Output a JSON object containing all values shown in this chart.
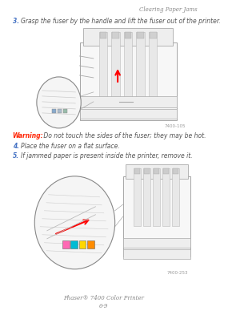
{
  "bg_color": "#ffffff",
  "header_text": "Clearing Paper Jams",
  "header_color": "#888888",
  "header_fontsize": 5.0,
  "header_style": "italic",
  "step3_num": "3.",
  "step3_num_color": "#4472c4",
  "step3_text": "Grasp the fuser by the handle and lift the fuser out of the printer.",
  "step3_fontsize": 5.5,
  "warning_label": "Warning:",
  "warning_label_color": "#ff2200",
  "warning_text": " Do not touch the sides of the fuser; they may be hot.",
  "warning_fontsize": 5.5,
  "step4_num": "4.",
  "step4_num_color": "#4472c4",
  "step4_text": "Place the fuser on a flat surface.",
  "step5_num": "5.",
  "step5_num_color": "#4472c4",
  "step5_text": "If jammed paper is present inside the printer, remove it.",
  "step_fontsize": 5.5,
  "image1_caption": "7400-105",
  "image2_caption": "7400-253",
  "caption_fontsize": 4.0,
  "caption_color": "#999999",
  "footer_line1": "Phaser® 7400 Color Printer",
  "footer_line2": "6-9",
  "footer_fontsize": 5.0,
  "footer_color": "#888888",
  "footer_style": "italic",
  "text_color": "#555555"
}
